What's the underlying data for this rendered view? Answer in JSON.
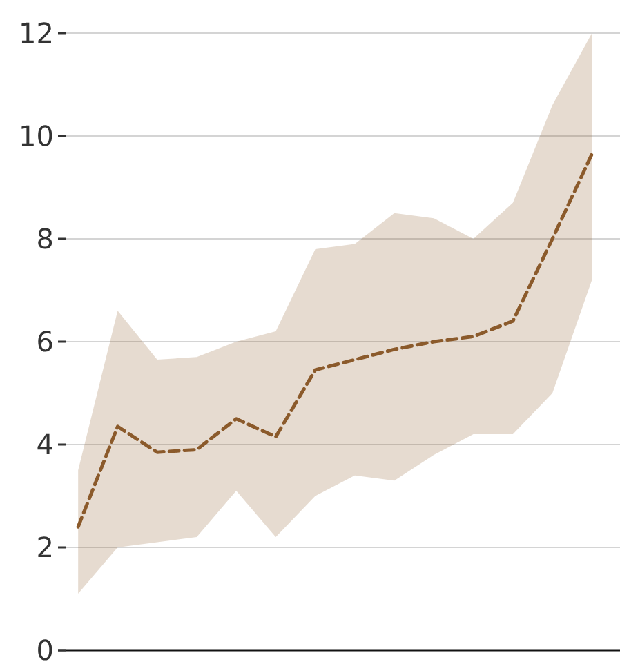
{
  "chart_data": {
    "type": "line",
    "categories": [
      null,
      null,
      null,
      null,
      null,
      null,
      null,
      null,
      null,
      null,
      null,
      null,
      null,
      null
    ],
    "series": [
      {
        "color": "#8b5a2b",
        "values": [
          2.4,
          4.35,
          3.85,
          3.9,
          4.5,
          4.15,
          5.45,
          5.65,
          5.85,
          6.0,
          6.1,
          6.4,
          8.0,
          9.65
        ],
        "lower": [
          1.1,
          2.0,
          2.1,
          2.2,
          3.1,
          2.2,
          3.0,
          3.4,
          3.3,
          3.8,
          4.2,
          4.2,
          5.0,
          7.2
        ],
        "upper": [
          3.5,
          6.6,
          5.65,
          5.7,
          6.0,
          6.2,
          7.8,
          7.9,
          8.5,
          8.4,
          8.0,
          8.7,
          10.6,
          12.0
        ]
      }
    ],
    "ylim": [
      0,
      12
    ],
    "yticks": [
      0,
      2,
      4,
      6,
      8,
      10,
      12
    ],
    "grid": "y",
    "line_style": "dashed",
    "marker": "none",
    "tick_labels": "y"
  }
}
